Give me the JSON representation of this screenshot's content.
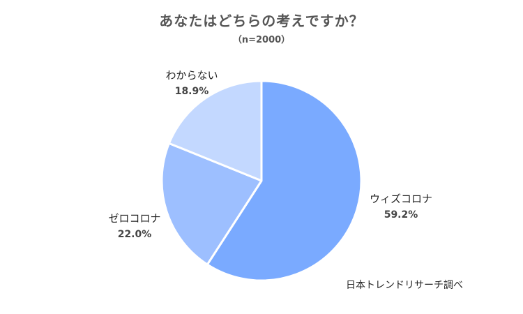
{
  "chart_data": {
    "type": "pie",
    "title": "あなたはどちらの考えですか？",
    "subtitle": "（n=2000）",
    "categories": [
      "ウィズコロナ",
      "ゼロコロナ",
      "わからない"
    ],
    "values": [
      59.2,
      22.0,
      18.9
    ],
    "data_labels": [
      "59.2%",
      "22.0%",
      "18.9%"
    ],
    "colors": [
      "#7aaaff",
      "#9dbfff",
      "#c3d8ff"
    ],
    "start_angle_deg": 0,
    "direction": "clockwise",
    "legend": "none"
  },
  "source_note": "日本トレンドリサーチ調べ"
}
